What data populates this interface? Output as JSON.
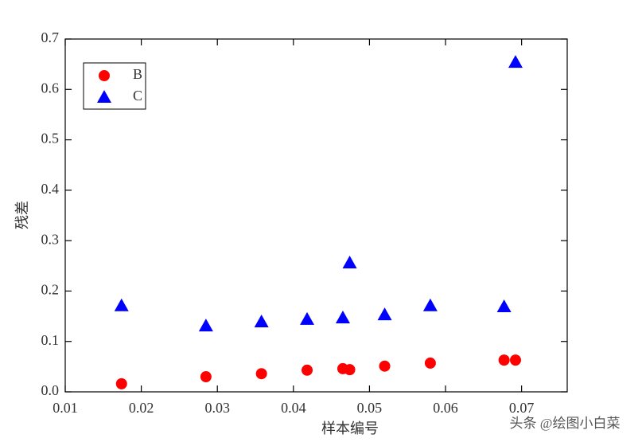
{
  "chart_data": {
    "type": "scatter",
    "x_label": "样本编号",
    "y_label": "残差",
    "xlim": [
      0.01,
      0.076
    ],
    "xticks": [
      0.01,
      0.02,
      0.03,
      0.04,
      0.05,
      0.06,
      0.07
    ],
    "ylim": [
      0,
      0.7
    ],
    "yticks": [
      {
        "value": 0,
        "label": "0.0"
      },
      0.1,
      0.2,
      0.3,
      0.4,
      0.5,
      0.6,
      0.7
    ],
    "legend": "upper left",
    "series": [
      {
        "name": "B",
        "color": "#ff0000",
        "marker": "circle",
        "x": [
          0.0174,
          0.0285,
          0.0358,
          0.0418,
          0.0465,
          0.0474,
          0.052,
          0.058,
          0.0677,
          0.0692
        ],
        "values": [
          0.016,
          0.03,
          0.036,
          0.043,
          0.046,
          0.044,
          0.051,
          0.057,
          0.063,
          0.063
        ]
      },
      {
        "name": "C",
        "color": "#0000ff",
        "marker": "triangle",
        "x": [
          0.0174,
          0.0285,
          0.0358,
          0.0418,
          0.0465,
          0.0474,
          0.052,
          0.058,
          0.0677,
          0.0692
        ],
        "values": [
          0.171,
          0.131,
          0.139,
          0.144,
          0.147,
          0.256,
          0.153,
          0.171,
          0.169,
          0.654
        ]
      }
    ],
    "watermark": "头条 @绘图小白菜"
  }
}
